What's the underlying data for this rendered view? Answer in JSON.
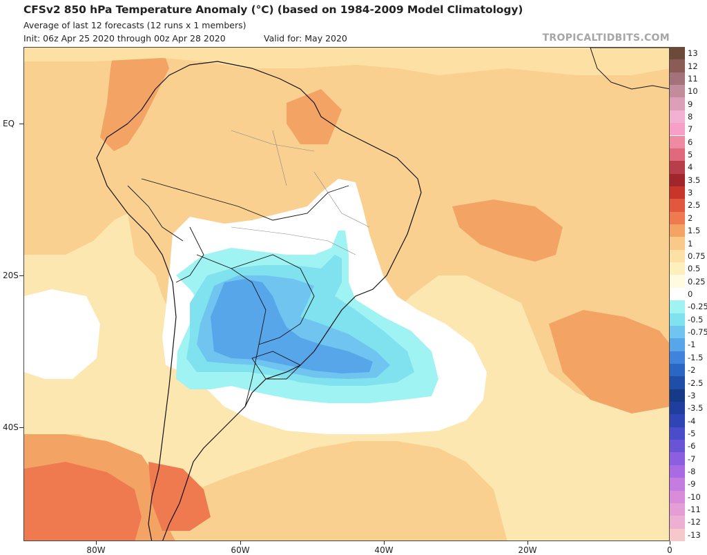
{
  "header": {
    "title": "CFSv2 850 hPa Temperature Anomaly (°C) (based on 1984-2009 Model Climatology)",
    "subtitle": "Average of last 12 forecasts (12 runs x 1 members)",
    "init": "Init: 06z Apr 25 2020 through 00z Apr 28 2020",
    "valid": "Valid for: May 2020",
    "credit": "TROPICALTIDBITS.COM"
  },
  "map": {
    "lat_labels": [
      "EQ",
      "20S",
      "40S"
    ],
    "lon_labels": [
      "80W",
      "60W",
      "40W",
      "20W",
      "0"
    ]
  },
  "colorbar": {
    "levels": [
      {
        "label": "13",
        "color": "#6b4a3a"
      },
      {
        "label": "12",
        "color": "#8a5c55"
      },
      {
        "label": "11",
        "color": "#a4727a"
      },
      {
        "label": "10",
        "color": "#c28c9c"
      },
      {
        "label": "9",
        "color": "#dc9fb8"
      },
      {
        "label": "8",
        "color": "#f2b1d3"
      },
      {
        "label": "7",
        "color": "#f6a0c8"
      },
      {
        "label": "6",
        "color": "#ef8aa3"
      },
      {
        "label": "5",
        "color": "#e06a7c"
      },
      {
        "label": "4",
        "color": "#b83f49"
      },
      {
        "label": "3.5",
        "color": "#a0262c"
      },
      {
        "label": "3",
        "color": "#c7352b"
      },
      {
        "label": "2.5",
        "color": "#e2583f"
      },
      {
        "label": "2",
        "color": "#ef7a4f"
      },
      {
        "label": "1.5",
        "color": "#f3a465"
      },
      {
        "label": "1",
        "color": "#f9c98a"
      },
      {
        "label": "0.75",
        "color": "#fde0a3"
      },
      {
        "label": "0.5",
        "color": "#fdf0bd"
      },
      {
        "label": "0.25",
        "color": "#fefbe0"
      },
      {
        "label": "0",
        "color": "#ffffff"
      },
      {
        "label": "-0.25",
        "color": "#9ff3f3"
      },
      {
        "label": "-0.5",
        "color": "#7fe2ee"
      },
      {
        "label": "-0.75",
        "color": "#6fc5ef"
      },
      {
        "label": "-1",
        "color": "#57a6ea"
      },
      {
        "label": "-1.5",
        "color": "#3f83dc"
      },
      {
        "label": "-2",
        "color": "#2a66c4"
      },
      {
        "label": "-2.5",
        "color": "#1e4ea6"
      },
      {
        "label": "-3",
        "color": "#163a85"
      },
      {
        "label": "-3.5",
        "color": "#1f3e9e"
      },
      {
        "label": "-4",
        "color": "#2f45b5"
      },
      {
        "label": "-5",
        "color": "#4a4dc9"
      },
      {
        "label": "-6",
        "color": "#6a54d6"
      },
      {
        "label": "-7",
        "color": "#8c5fe0"
      },
      {
        "label": "-8",
        "color": "#a86be2"
      },
      {
        "label": "-9",
        "color": "#c47ce0"
      },
      {
        "label": "-10",
        "color": "#d88cda"
      },
      {
        "label": "-11",
        "color": "#e59dd6"
      },
      {
        "label": "-12",
        "color": "#eeb0d2"
      },
      {
        "label": "-13",
        "color": "#f6c8cc"
      }
    ]
  },
  "colors": {
    "border_country": "#111111",
    "border_state": "#888888",
    "frame": "#444444"
  }
}
